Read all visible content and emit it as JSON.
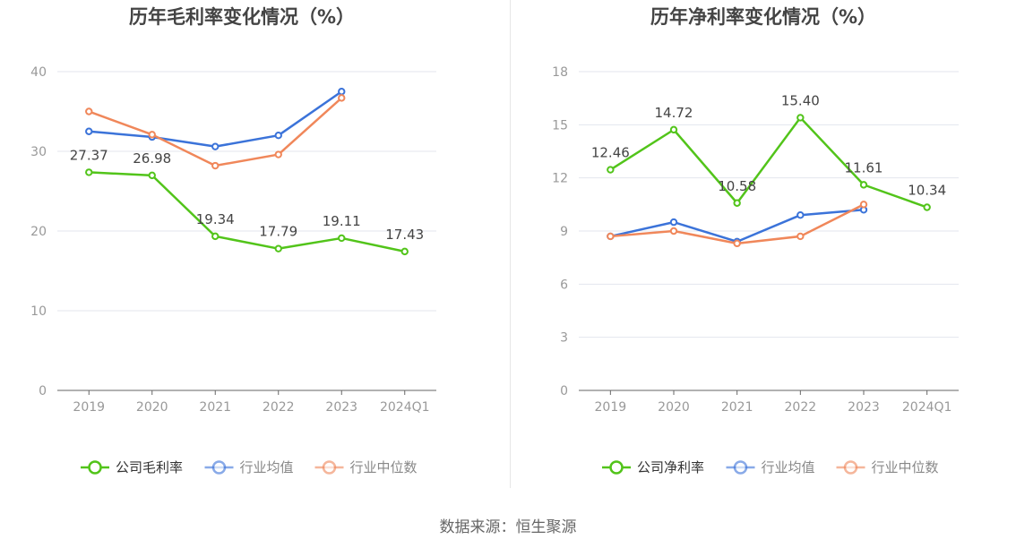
{
  "source_text": "数据来源：恒生聚源",
  "colors": {
    "company": "#52c41a",
    "industry_avg": "#3b73d9",
    "industry_median": "#f0875a"
  },
  "chart_data": [
    {
      "type": "line",
      "title": "历年毛利率变化情况（%）",
      "categories": [
        "2019",
        "2020",
        "2021",
        "2022",
        "2023",
        "2024Q1"
      ],
      "ylim": [
        0,
        40
      ],
      "yticks": [
        0,
        10,
        20,
        30,
        40
      ],
      "grid": true,
      "legend_position": "bottom",
      "series": [
        {
          "name": "公司毛利率",
          "key": "company",
          "values": [
            27.37,
            26.98,
            19.34,
            17.79,
            19.11,
            17.43
          ],
          "labels": [
            "27.37",
            "26.98",
            "19.34",
            "17.79",
            "19.11",
            "17.43"
          ]
        },
        {
          "name": "行业均值",
          "key": "industry_avg",
          "values": [
            32.5,
            31.8,
            30.6,
            32.0,
            37.5,
            null
          ]
        },
        {
          "name": "行业中位数",
          "key": "industry_median",
          "values": [
            35.0,
            32.1,
            28.2,
            29.6,
            36.7,
            null
          ]
        }
      ]
    },
    {
      "type": "line",
      "title": "历年净利率变化情况（%）",
      "categories": [
        "2019",
        "2020",
        "2021",
        "2022",
        "2023",
        "2024Q1"
      ],
      "ylim": [
        0,
        18
      ],
      "yticks": [
        0,
        3,
        6,
        9,
        12,
        15,
        18
      ],
      "grid": true,
      "legend_position": "bottom",
      "series": [
        {
          "name": "公司净利率",
          "key": "company",
          "values": [
            12.46,
            14.72,
            10.58,
            15.4,
            11.61,
            10.34
          ],
          "labels": [
            "12.46",
            "14.72",
            "10.58",
            "15.40",
            "11.61",
            "10.34"
          ]
        },
        {
          "name": "行业均值",
          "key": "industry_avg",
          "values": [
            8.7,
            9.5,
            8.4,
            9.9,
            10.2,
            null
          ]
        },
        {
          "name": "行业中位数",
          "key": "industry_median",
          "values": [
            8.7,
            9.0,
            8.3,
            8.7,
            10.5,
            null
          ]
        }
      ]
    }
  ]
}
